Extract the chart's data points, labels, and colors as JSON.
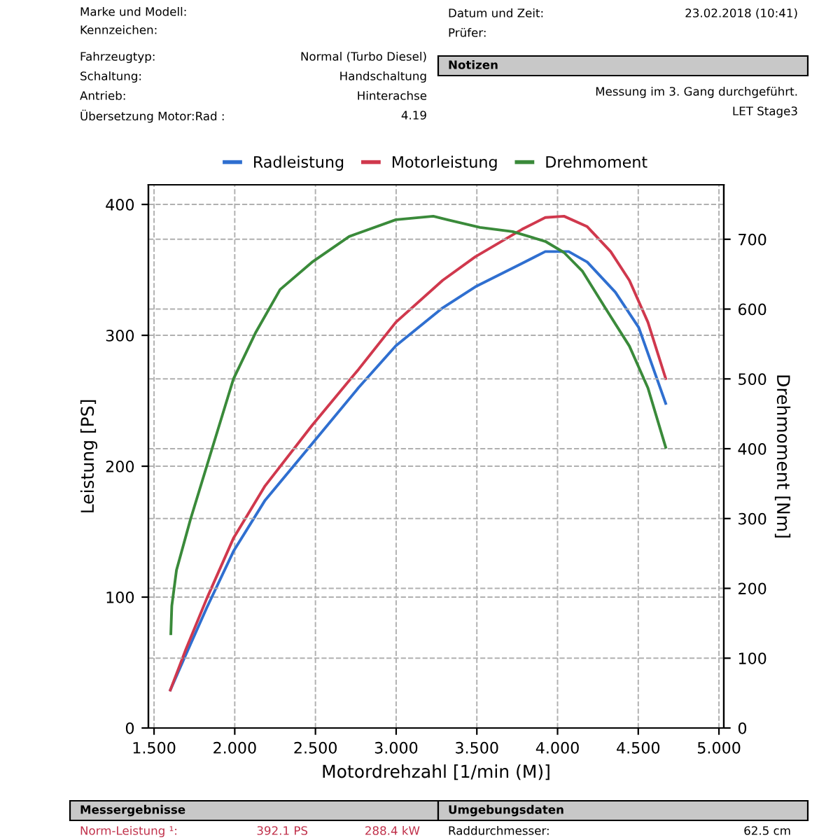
{
  "chart_data": {
    "type": "line",
    "xlabel": "Motordrehzahl [1/min (M)]",
    "ylabel": "Leistung [PS]",
    "y2label": "Drehmoment [Nm]",
    "series": [
      {
        "name": "Radleistung",
        "color": "#2f6fd0",
        "x": [
          1.601,
          1.697,
          1.827,
          1.992,
          2.188,
          2.478,
          2.767,
          2.998,
          3.288,
          3.49,
          3.78,
          3.924,
          4.069,
          4.184,
          4.358,
          4.503,
          4.67
        ],
        "values": [
          29,
          56,
          92,
          135,
          174,
          217,
          260,
          292,
          321,
          337,
          355,
          364,
          364,
          356,
          333,
          306,
          248
        ]
      },
      {
        "name": "Motorleistung",
        "color": "#d0384d",
        "x": [
          1.601,
          1.697,
          1.827,
          1.992,
          2.188,
          2.478,
          2.767,
          2.998,
          3.288,
          3.49,
          3.78,
          3.924,
          4.04,
          4.184,
          4.329,
          4.445,
          4.56,
          4.67
        ],
        "values": [
          29,
          60,
          99,
          145,
          185,
          231,
          274,
          310,
          342,
          360,
          381,
          390,
          391,
          383,
          364,
          342,
          310,
          267
        ]
      },
      {
        "name": "Drehmoment",
        "color": "#3a8a3a",
        "axis": "y2",
        "x": [
          1.604,
          1.61,
          1.639,
          1.726,
          1.841,
          1.992,
          2.131,
          2.281,
          2.478,
          2.709,
          2.998,
          3.23,
          3.317,
          3.519,
          3.722,
          3.924,
          4.04,
          4.155,
          4.3,
          4.445,
          4.56,
          4.67
        ],
        "values": [
          135,
          175,
          226,
          299,
          386,
          500,
          567,
          628,
          667,
          704,
          728,
          733,
          728,
          717,
          711,
          697,
          681,
          654,
          600,
          547,
          487,
          402
        ]
      }
    ],
    "xlim": [
      1.465,
      5.03
    ],
    "xticks": [
      {
        "value": 1.5,
        "label": "1.500"
      },
      {
        "value": 2,
        "label": "2.000"
      },
      {
        "value": 2.5,
        "label": "2.500"
      },
      {
        "value": 3,
        "label": "3.000"
      },
      {
        "value": 3.5,
        "label": "3.500"
      },
      {
        "value": 4,
        "label": "4.000"
      },
      {
        "value": 4.5,
        "label": "4.500"
      },
      {
        "value": 5,
        "label": "5.000"
      }
    ],
    "ylim": [
      0,
      415
    ],
    "yticks": [
      0,
      100,
      200,
      300,
      400
    ],
    "y2lim": [
      0,
      778
    ],
    "y2ticks": [
      0,
      100,
      200,
      300,
      400,
      500,
      600,
      700
    ],
    "grid": true,
    "legend": "top",
    "marker": "none",
    "line_style": "solid",
    "annotations": [
      "Marke und Modell:",
      "Kennzeichen:",
      "Fahrzeugtyp:",
      "Normal (Turbo Diesel)",
      "Schaltung:",
      "Handschaltung",
      "Antrieb:",
      "Hinterachse",
      "Übersetzung Motor:Rad :",
      "4.19",
      "Datum und Zeit:",
      "23.02.2018 (10:41)",
      "Prüfer:",
      "Notizen",
      "Messung im 3. Gang durchgeführt.",
      "LET Stage3",
      "Messergebnisse",
      "Umgebungsdaten",
      "Norm-Leistung ¹:",
      "392.1 PS",
      "288.4 kW",
      "Raddurchmesser:",
      "62.5 cm"
    ]
  }
}
